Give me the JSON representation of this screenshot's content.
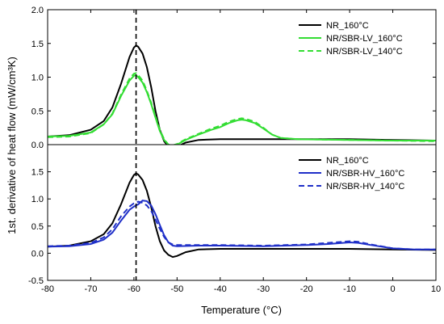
{
  "chart_data": {
    "type": "line",
    "xlabel": "Temperature (°C)",
    "ylabel": "1st. derivative of heat flow (mW/cm³K)",
    "xlim": [
      -80,
      10
    ],
    "x_ticks": [
      -80,
      -70,
      -60,
      -50,
      -40,
      -30,
      -20,
      -10,
      0,
      10
    ],
    "reference_line_x": -59.5,
    "colors": {
      "black": "#000000",
      "green": "#33dd33",
      "blue": "#1f2fc8"
    },
    "panels": [
      {
        "position": "top",
        "ylim": [
          0.0,
          2.0
        ],
        "y_ticks": [
          0.0,
          0.5,
          1.0,
          1.5,
          2.0
        ],
        "legend_position": "top-right",
        "series": [
          {
            "name": "NR_160°C",
            "color": "#000000",
            "dash": "solid",
            "points": [
              [
                -80,
                0.12
              ],
              [
                -75,
                0.14
              ],
              [
                -70,
                0.22
              ],
              [
                -67,
                0.35
              ],
              [
                -65,
                0.55
              ],
              [
                -63,
                0.9
              ],
              [
                -61,
                1.3
              ],
              [
                -60,
                1.44
              ],
              [
                -59.5,
                1.47
              ],
              [
                -59,
                1.45
              ],
              [
                -58,
                1.35
              ],
              [
                -57,
                1.15
              ],
              [
                -56,
                0.85
              ],
              [
                -55,
                0.5
              ],
              [
                -54,
                0.22
              ],
              [
                -53,
                0.05
              ],
              [
                -52,
                -0.03
              ],
              [
                -51,
                -0.05
              ],
              [
                -50,
                -0.03
              ],
              [
                -48,
                0.03
              ],
              [
                -45,
                0.07
              ],
              [
                -40,
                0.08
              ],
              [
                -30,
                0.08
              ],
              [
                -20,
                0.08
              ],
              [
                -10,
                0.08
              ],
              [
                0,
                0.07
              ],
              [
                10,
                0.06
              ]
            ]
          },
          {
            "name": "NR/SBR-LV_160°C",
            "color": "#33dd33",
            "dash": "solid",
            "points": [
              [
                -80,
                0.12
              ],
              [
                -75,
                0.13
              ],
              [
                -70,
                0.18
              ],
              [
                -67,
                0.3
              ],
              [
                -65,
                0.45
              ],
              [
                -63,
                0.72
              ],
              [
                -61,
                0.95
              ],
              [
                -60,
                1.02
              ],
              [
                -59.5,
                1.03
              ],
              [
                -59,
                1.0
              ],
              [
                -58,
                0.92
              ],
              [
                -57,
                0.78
              ],
              [
                -56,
                0.6
              ],
              [
                -55,
                0.4
              ],
              [
                -54,
                0.2
              ],
              [
                -53,
                0.07
              ],
              [
                -52,
                0.0
              ],
              [
                -51,
                -0.02
              ],
              [
                -50,
                0.0
              ],
              [
                -48,
                0.07
              ],
              [
                -45,
                0.15
              ],
              [
                -42,
                0.22
              ],
              [
                -40,
                0.26
              ],
              [
                -38,
                0.32
              ],
              [
                -36,
                0.36
              ],
              [
                -35,
                0.37
              ],
              [
                -34,
                0.36
              ],
              [
                -32,
                0.32
              ],
              [
                -30,
                0.24
              ],
              [
                -28,
                0.15
              ],
              [
                -26,
                0.1
              ],
              [
                -22,
                0.08
              ],
              [
                -10,
                0.07
              ],
              [
                0,
                0.06
              ],
              [
                10,
                0.06
              ]
            ]
          },
          {
            "name": "NR/SBR-LV_140°C",
            "color": "#33dd33",
            "dash": "dashed",
            "points": [
              [
                -80,
                0.11
              ],
              [
                -75,
                0.12
              ],
              [
                -70,
                0.17
              ],
              [
                -67,
                0.3
              ],
              [
                -65,
                0.46
              ],
              [
                -63,
                0.74
              ],
              [
                -61,
                0.98
              ],
              [
                -60,
                1.05
              ],
              [
                -59.5,
                1.06
              ],
              [
                -59,
                1.03
              ],
              [
                -58,
                0.95
              ],
              [
                -57,
                0.8
              ],
              [
                -56,
                0.62
              ],
              [
                -55,
                0.42
              ],
              [
                -54,
                0.22
              ],
              [
                -53,
                0.08
              ],
              [
                -52,
                0.0
              ],
              [
                -51,
                -0.01
              ],
              [
                -50,
                0.01
              ],
              [
                -48,
                0.08
              ],
              [
                -45,
                0.16
              ],
              [
                -42,
                0.24
              ],
              [
                -40,
                0.28
              ],
              [
                -38,
                0.34
              ],
              [
                -36,
                0.38
              ],
              [
                -35,
                0.39
              ],
              [
                -34,
                0.38
              ],
              [
                -32,
                0.34
              ],
              [
                -30,
                0.25
              ],
              [
                -28,
                0.15
              ],
              [
                -26,
                0.1
              ],
              [
                -22,
                0.08
              ],
              [
                -10,
                0.07
              ],
              [
                0,
                0.06
              ],
              [
                10,
                0.05
              ]
            ]
          }
        ]
      },
      {
        "position": "bottom",
        "ylim": [
          -0.5,
          2.0
        ],
        "y_ticks": [
          -0.5,
          0.0,
          0.5,
          1.0,
          1.5
        ],
        "legend_position": "top-right",
        "series": [
          {
            "name": "NR_160°C",
            "color": "#000000",
            "dash": "solid",
            "points": [
              [
                -80,
                0.12
              ],
              [
                -75,
                0.14
              ],
              [
                -70,
                0.22
              ],
              [
                -67,
                0.35
              ],
              [
                -65,
                0.55
              ],
              [
                -63,
                0.9
              ],
              [
                -61,
                1.3
              ],
              [
                -60,
                1.44
              ],
              [
                -59.5,
                1.47
              ],
              [
                -59,
                1.45
              ],
              [
                -58,
                1.35
              ],
              [
                -57,
                1.15
              ],
              [
                -56,
                0.85
              ],
              [
                -55,
                0.5
              ],
              [
                -54,
                0.22
              ],
              [
                -53,
                0.05
              ],
              [
                -52,
                -0.03
              ],
              [
                -51,
                -0.07
              ],
              [
                -50,
                -0.05
              ],
              [
                -48,
                0.02
              ],
              [
                -45,
                0.07
              ],
              [
                -40,
                0.08
              ],
              [
                -30,
                0.08
              ],
              [
                -20,
                0.08
              ],
              [
                -10,
                0.08
              ],
              [
                0,
                0.07
              ],
              [
                10,
                0.06
              ]
            ]
          },
          {
            "name": "NR/SBR-HV_160°C",
            "color": "#1f2fc8",
            "dash": "solid",
            "points": [
              [
                -80,
                0.12
              ],
              [
                -75,
                0.13
              ],
              [
                -70,
                0.17
              ],
              [
                -67,
                0.25
              ],
              [
                -65,
                0.38
              ],
              [
                -63,
                0.6
              ],
              [
                -61,
                0.8
              ],
              [
                -60,
                0.86
              ],
              [
                -59,
                0.9
              ],
              [
                -58,
                0.97
              ],
              [
                -57,
                0.96
              ],
              [
                -56,
                0.88
              ],
              [
                -55,
                0.72
              ],
              [
                -54,
                0.52
              ],
              [
                -53,
                0.33
              ],
              [
                -52,
                0.2
              ],
              [
                -51,
                0.14
              ],
              [
                -50,
                0.13
              ],
              [
                -45,
                0.14
              ],
              [
                -40,
                0.14
              ],
              [
                -30,
                0.13
              ],
              [
                -20,
                0.15
              ],
              [
                -15,
                0.17
              ],
              [
                -10,
                0.2
              ],
              [
                -8,
                0.19
              ],
              [
                -5,
                0.15
              ],
              [
                0,
                0.09
              ],
              [
                5,
                0.07
              ],
              [
                10,
                0.07
              ]
            ]
          },
          {
            "name": "NR/SBR-HV_140°C",
            "color": "#1f2fc8",
            "dash": "dashed",
            "points": [
              [
                -80,
                0.13
              ],
              [
                -75,
                0.14
              ],
              [
                -70,
                0.19
              ],
              [
                -67,
                0.29
              ],
              [
                -65,
                0.44
              ],
              [
                -63,
                0.68
              ],
              [
                -61,
                0.86
              ],
              [
                -60,
                0.92
              ],
              [
                -59,
                0.95
              ],
              [
                -58,
                0.93
              ],
              [
                -57,
                0.88
              ],
              [
                -56,
                0.78
              ],
              [
                -55,
                0.62
              ],
              [
                -54,
                0.45
              ],
              [
                -53,
                0.3
              ],
              [
                -52,
                0.2
              ],
              [
                -51,
                0.16
              ],
              [
                -50,
                0.15
              ],
              [
                -45,
                0.15
              ],
              [
                -40,
                0.15
              ],
              [
                -30,
                0.14
              ],
              [
                -20,
                0.16
              ],
              [
                -15,
                0.19
              ],
              [
                -10,
                0.22
              ],
              [
                -8,
                0.21
              ],
              [
                -5,
                0.16
              ],
              [
                0,
                0.09
              ],
              [
                5,
                0.07
              ],
              [
                10,
                0.07
              ]
            ]
          }
        ]
      }
    ]
  }
}
